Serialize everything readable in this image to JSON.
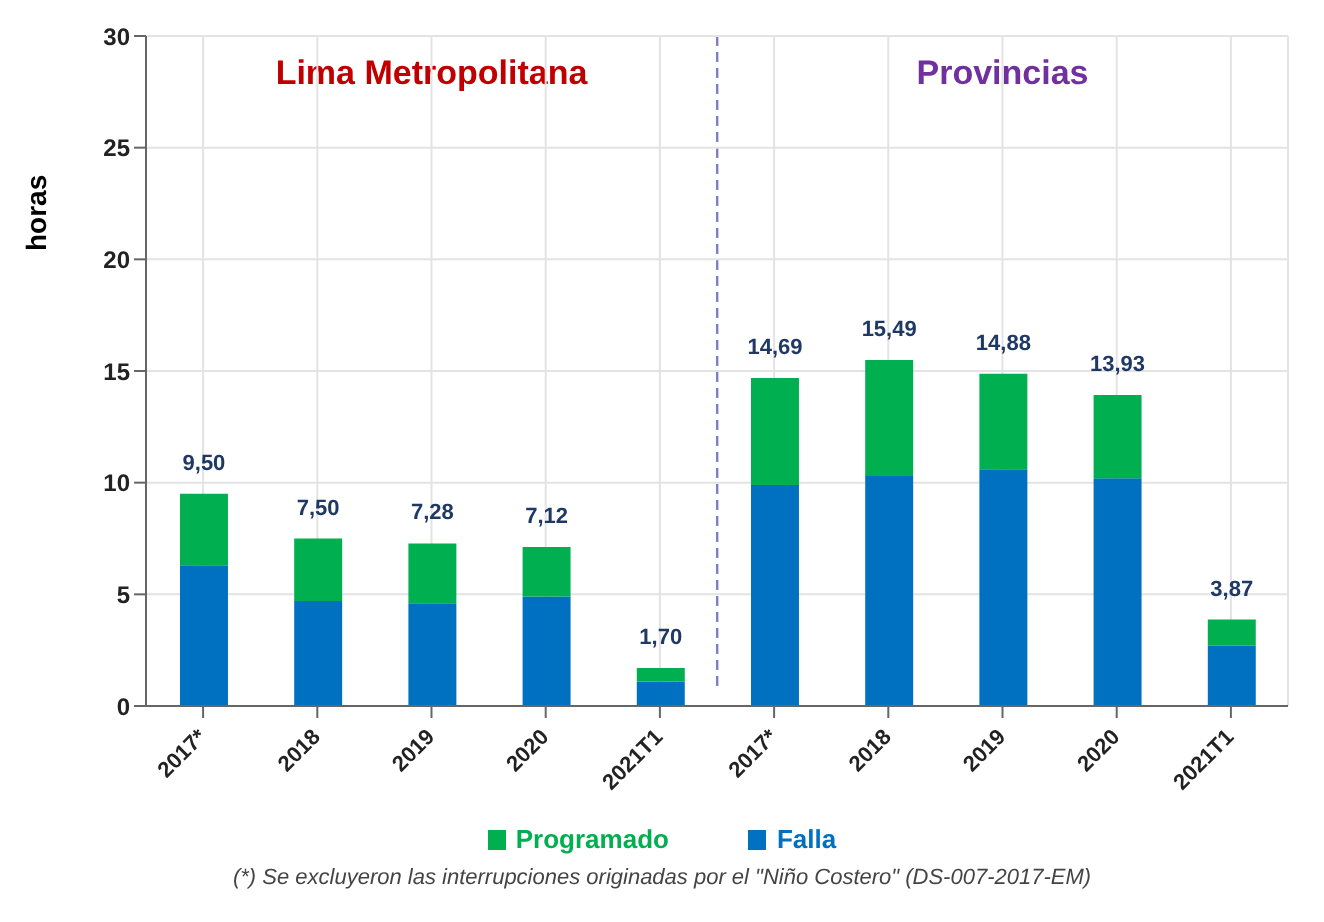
{
  "chart_data": {
    "type": "bar",
    "stacked": true,
    "categories": [
      "2017*",
      "2018",
      "2019",
      "2020",
      "2021T1",
      "2017*",
      "2018",
      "2019",
      "2020",
      "2021T1"
    ],
    "series": [
      {
        "name": "Falla",
        "color": "#0070c0",
        "values": [
          6.3,
          4.7,
          4.6,
          4.9,
          1.1,
          9.9,
          10.3,
          10.6,
          10.2,
          2.7
        ]
      },
      {
        "name": "Programado",
        "color": "#00b050",
        "values": [
          3.2,
          2.8,
          2.68,
          2.22,
          0.6,
          4.79,
          5.19,
          4.28,
          3.73,
          1.17
        ]
      }
    ],
    "totals": [
      "9,50",
      "7,50",
      "7,28",
      "7,12",
      "1,70",
      "14,69",
      "15,49",
      "14,88",
      "13,93",
      "3,87"
    ],
    "ylabel": "horas",
    "ylim": [
      0,
      30
    ],
    "yticks": [
      0,
      5,
      10,
      15,
      20,
      25,
      30
    ],
    "grid": true,
    "legend": "bottom",
    "annotations": [
      "Lima Metropolitana",
      "Provincias",
      "(*) Se excluyeron las interrupciones originadas por el \"Niño Costero\" (DS-007-2017-EM)"
    ]
  }
}
